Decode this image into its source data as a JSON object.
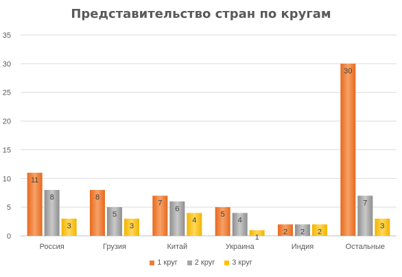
{
  "chart_data": {
    "type": "bar",
    "title": "Представительство стран по кругам",
    "categories": [
      "Россия",
      "Грузия",
      "Китай",
      "Украина",
      "Индия",
      "Остальные"
    ],
    "series": [
      {
        "name": "1 круг",
        "values": [
          11,
          8,
          7,
          5,
          2,
          30
        ],
        "color": "#ED7D31"
      },
      {
        "name": "2 круг",
        "values": [
          8,
          5,
          6,
          4,
          2,
          7
        ],
        "color": "#A5A5A5"
      },
      {
        "name": "3 круг",
        "values": [
          3,
          3,
          4,
          1,
          2,
          3
        ],
        "color": "#FFC000"
      }
    ],
    "ylim": [
      0,
      35
    ],
    "yticks": [
      0,
      5,
      10,
      15,
      20,
      25,
      30,
      35
    ],
    "grid": true,
    "legend_position": "bottom",
    "data_labels": true
  }
}
